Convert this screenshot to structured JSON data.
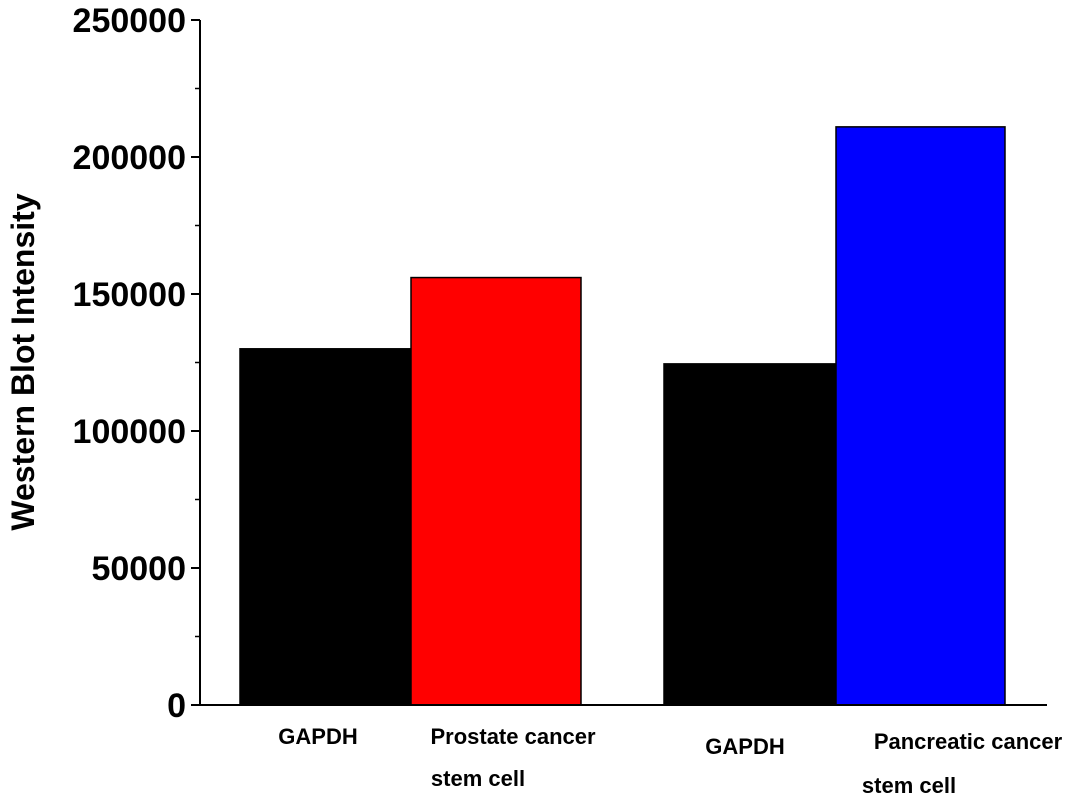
{
  "chart_data": {
    "type": "bar",
    "title": "",
    "xlabel": "",
    "ylabel": "Western Blot Intensity",
    "ylim": [
      0,
      250000
    ],
    "yticks": [
      "0",
      "50000",
      "100000",
      "150000",
      "200000",
      "250000"
    ],
    "grid": false,
    "categories": [
      [
        "GAPDH"
      ],
      [
        "Prostate cancer",
        "stem cell"
      ],
      [
        "GAPDH"
      ],
      [
        "Pancreatic cancer",
        "stem cell"
      ]
    ],
    "values": [
      130000,
      156000,
      124500,
      211000
    ],
    "colors": [
      "#000000",
      "#ff0000",
      "#000000",
      "#0000ff"
    ]
  }
}
